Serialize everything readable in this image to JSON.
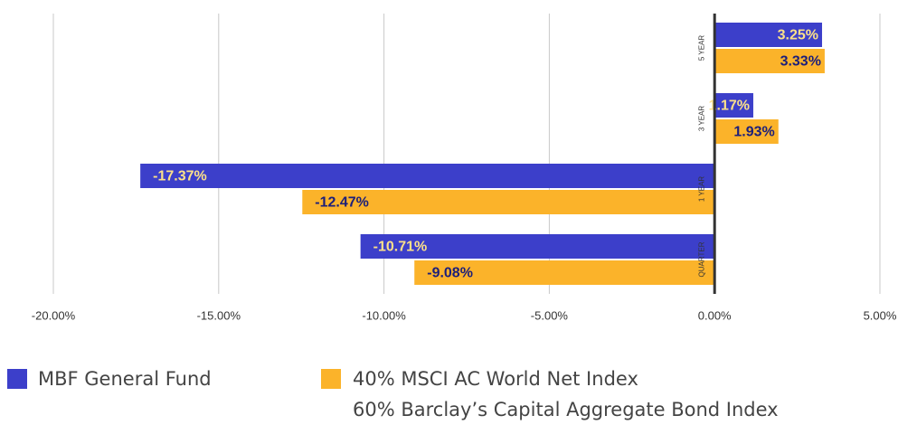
{
  "chart_data": {
    "type": "hbar",
    "categories": [
      "5 YEAR",
      "3 YEAR",
      "1 YEAR",
      "QUARTER"
    ],
    "series": [
      {
        "name": "MBF General Fund",
        "color": "#3c3fca",
        "values": [
          3.25,
          1.17,
          -17.37,
          -10.71
        ],
        "value_labels": [
          "3.25%",
          "1.17%",
          "-17.37%",
          "-10.71%"
        ]
      },
      {
        "name": "40% MSCI AC World Net Index\n60% Barclay’s Capital Aggregate Bond Index",
        "color": "#fbb32a",
        "values": [
          3.33,
          1.93,
          -12.47,
          -9.08
        ],
        "value_labels": [
          "3.33%",
          "1.93%",
          "-12.47%",
          "-9.08%"
        ]
      }
    ],
    "xlim": [
      -20,
      5
    ],
    "xticks": [
      {
        "value": -20,
        "label": "-20.00%"
      },
      {
        "value": -15,
        "label": "-15.00%"
      },
      {
        "value": -10,
        "label": "-10.00%"
      },
      {
        "value": -5,
        "label": "-5.00%"
      },
      {
        "value": 0,
        "label": "0.00%"
      },
      {
        "value": 5,
        "label": "5.00%"
      }
    ],
    "grid": true
  }
}
